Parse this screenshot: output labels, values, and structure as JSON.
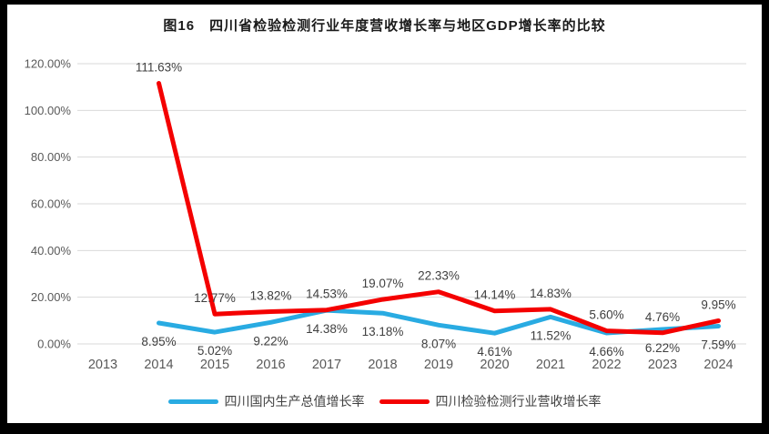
{
  "title": "图16　四川省检验检测行业年度营收增长率与地区GDP增长率的比较",
  "chart_data": {
    "type": "line",
    "title": "图16　四川省检验检测行业年度营收增长率与地区GDP增长率的比较",
    "categories": [
      "2013",
      "2014",
      "2015",
      "2016",
      "2017",
      "2018",
      "2019",
      "2020",
      "2021",
      "2022",
      "2023",
      "2024"
    ],
    "y_ticks": [
      "120.00%",
      "100.00%",
      "80.00%",
      "60.00%",
      "40.00%",
      "20.00%",
      "0.00%"
    ],
    "ylim": [
      0,
      120
    ],
    "grid": true,
    "legend_position": "bottom",
    "series": [
      {
        "name": "四川国内生产总值增长率",
        "color": "#29ABE2",
        "label_position": "below",
        "values": [
          null,
          8.95,
          5.02,
          9.22,
          14.38,
          13.18,
          8.07,
          4.61,
          11.52,
          4.66,
          6.22,
          7.59
        ],
        "labels": [
          "",
          "8.95%",
          "5.02%",
          "9.22%",
          "14.38%",
          "13.18%",
          "8.07%",
          "4.61%",
          "11.52%",
          "4.66%",
          "6.22%",
          "7.59%"
        ]
      },
      {
        "name": "四川检验检测行业营收增长率",
        "color": "#F40000",
        "label_position": "above",
        "values": [
          null,
          111.63,
          12.77,
          13.82,
          14.53,
          19.07,
          22.33,
          14.14,
          14.83,
          5.6,
          4.76,
          9.95
        ],
        "labels": [
          "",
          "111.63%",
          "12.77%",
          "13.82%",
          "14.53%",
          "19.07%",
          "22.33%",
          "14.14%",
          "14.83%",
          "5.60%",
          "4.76%",
          "9.95%"
        ]
      }
    ],
    "colors": {
      "grid": "#D9D9D9",
      "axis_text": "#595959",
      "data_label": "#3F3F3F",
      "frame": "#000000",
      "background": "#FFFFFF"
    }
  }
}
